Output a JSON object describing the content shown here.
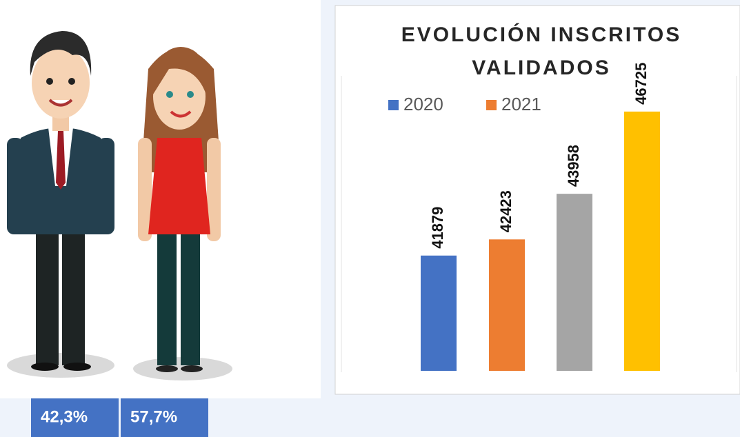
{
  "chart_data": {
    "type": "bar",
    "title": "EVOLUCIÓN INSCRITOS VALIDADOS",
    "categories": [
      null,
      null,
      null,
      null
    ],
    "values": [
      41879,
      42423,
      43958,
      46725
    ],
    "colors": [
      "#4472c4",
      "#ed7d31",
      "#a5a5a5",
      "#ffc000"
    ],
    "legend": [
      {
        "name": "2020",
        "color": "#4472c4"
      },
      {
        "name": "2021",
        "color": "#ed7d31"
      }
    ],
    "ylim": [
      38000,
      47000
    ]
  },
  "shares": [
    "42,3%",
    "57,7%"
  ]
}
